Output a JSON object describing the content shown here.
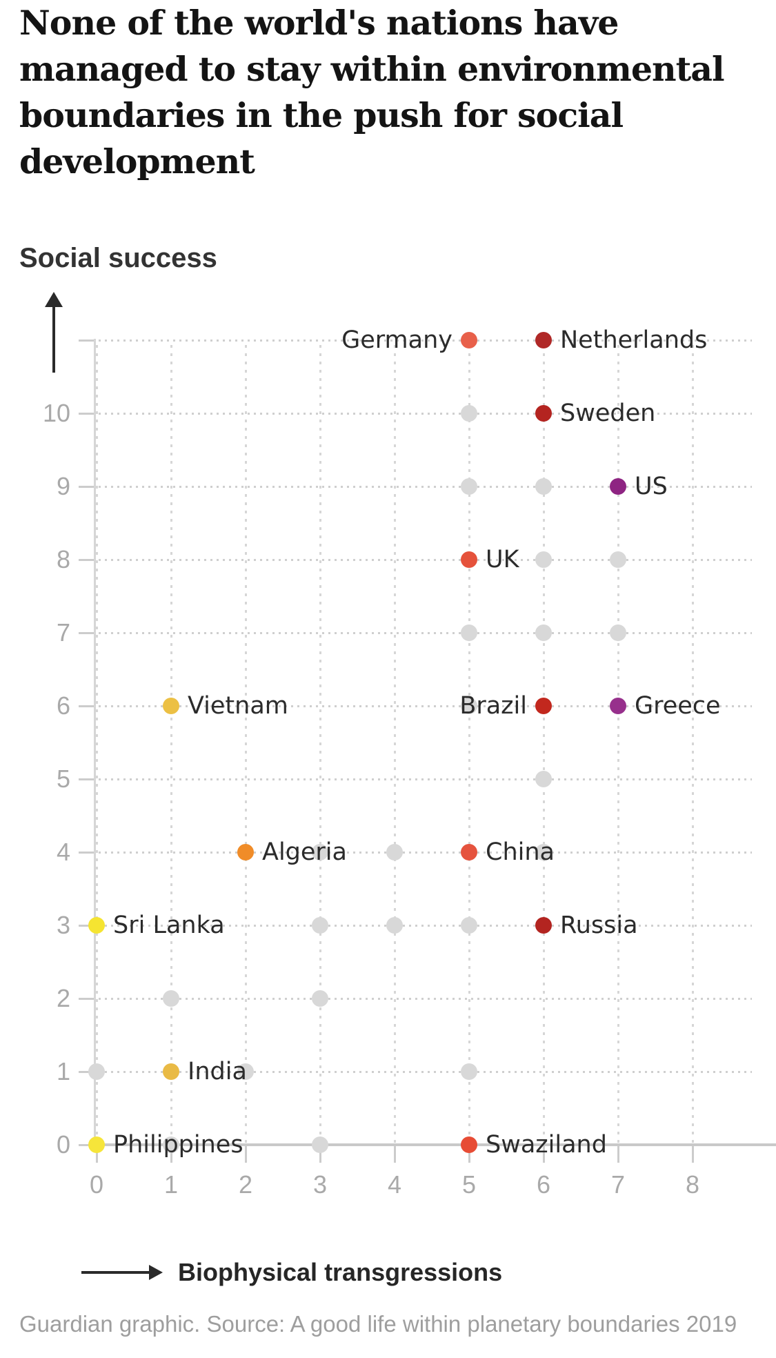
{
  "chart_data": {
    "type": "scatter",
    "title": "None of the world's nations have\nmanaged to stay within environmental\nboundaries in the push for social\ndevelopment",
    "y_axis": {
      "label": "Social success",
      "ticks": [
        0,
        1,
        2,
        3,
        4,
        5,
        6,
        7,
        8,
        9,
        10
      ],
      "top_unlabeled_row": 11,
      "range": [
        0,
        11
      ]
    },
    "x_axis": {
      "label": "Biophysical transgressions",
      "ticks": [
        0,
        1,
        2,
        3,
        4,
        5,
        6,
        7,
        8
      ],
      "range": [
        0,
        8
      ]
    },
    "grid": "dotted horizontal rows and dashed vertical columns",
    "legend_position": "below chart",
    "series": [
      {
        "name": "Germany",
        "x": 5,
        "y": 11,
        "color": "#e8604a",
        "label_side": "left"
      },
      {
        "name": "Netherlands",
        "x": 6,
        "y": 11,
        "color": "#b02827",
        "label_side": "right"
      },
      {
        "name": "Sweden",
        "x": 6,
        "y": 10,
        "color": "#b42420",
        "label_side": "right"
      },
      {
        "name": "US",
        "x": 7,
        "y": 9,
        "color": "#8e2482",
        "label_side": "right"
      },
      {
        "name": "UK",
        "x": 5,
        "y": 8,
        "color": "#e5523b",
        "label_side": "right"
      },
      {
        "name": "Vietnam",
        "x": 1,
        "y": 6,
        "color": "#ecc044",
        "label_side": "right"
      },
      {
        "name": "Brazil",
        "x": 6,
        "y": 6,
        "color": "#c2281e",
        "label_side": "left"
      },
      {
        "name": "Greece",
        "x": 7,
        "y": 6,
        "color": "#97308c",
        "label_side": "right"
      },
      {
        "name": "Algeria",
        "x": 2,
        "y": 4,
        "color": "#f08c28",
        "label_side": "right"
      },
      {
        "name": "China",
        "x": 5,
        "y": 4,
        "color": "#e5533e",
        "label_side": "right"
      },
      {
        "name": "Sri Lanka",
        "x": 0,
        "y": 3,
        "color": "#f5e431",
        "label_side": "right"
      },
      {
        "name": "Russia",
        "x": 6,
        "y": 3,
        "color": "#b32420",
        "label_side": "right"
      },
      {
        "name": "India",
        "x": 1,
        "y": 1,
        "color": "#e9ba45",
        "label_side": "right"
      },
      {
        "name": "Philippines",
        "x": 0,
        "y": 0,
        "color": "#f6e53a",
        "label_side": "right"
      },
      {
        "name": "Swaziland",
        "x": 5,
        "y": 0,
        "color": "#e74c35",
        "label_side": "right"
      }
    ],
    "unlabeled_points": [
      [
        5,
        10
      ],
      [
        5,
        9
      ],
      [
        6,
        9
      ],
      [
        6,
        8
      ],
      [
        7,
        8
      ],
      [
        5,
        7
      ],
      [
        6,
        7
      ],
      [
        7,
        7
      ],
      [
        5,
        6
      ],
      [
        6,
        5
      ],
      [
        3,
        4
      ],
      [
        4,
        4
      ],
      [
        6,
        4
      ],
      [
        3,
        3
      ],
      [
        4,
        3
      ],
      [
        5,
        3
      ],
      [
        1,
        2
      ],
      [
        3,
        2
      ],
      [
        0,
        1
      ],
      [
        2,
        1
      ],
      [
        5,
        1
      ],
      [
        1,
        0
      ],
      [
        3,
        0
      ]
    ],
    "unlabeled_color": "#d8d8d8",
    "source": "Guardian graphic. Source: A good life within planetary boundaries 2019"
  }
}
